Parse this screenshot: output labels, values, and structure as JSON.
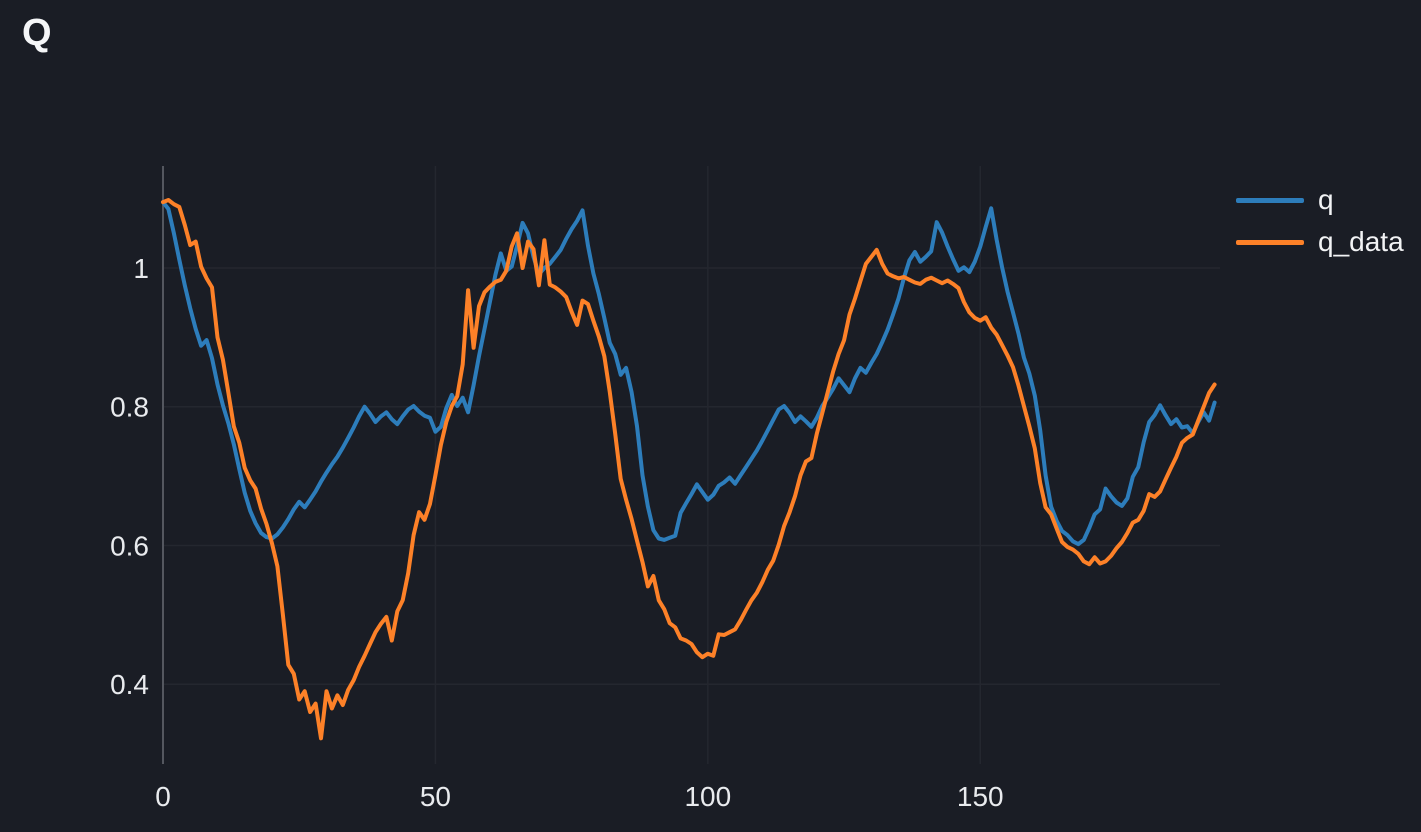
{
  "page": {
    "title": "Q",
    "background_color": "#1a1d25"
  },
  "legend": {
    "position": "right",
    "items": [
      {
        "label": "q",
        "color": "#2d7dbb"
      },
      {
        "label": "q_data",
        "color": "#fd8128"
      }
    ]
  },
  "axes": {
    "x_tick_labels": [
      "0",
      "50",
      "100",
      "150"
    ],
    "y_tick_labels": [
      "1",
      "0.8",
      "0.6",
      "0.4"
    ],
    "tick_color": "#e9ebee",
    "grid_color": "#24272f",
    "spine_color": "#54575f"
  },
  "chart_data": {
    "type": "line",
    "title": "Q",
    "xlabel": "",
    "ylabel": "",
    "grid": true,
    "legend_position": "right-outside",
    "xlim": [
      0,
      194
    ],
    "ylim": [
      0.285,
      1.147
    ],
    "x_ticks": [
      0,
      50,
      100,
      150
    ],
    "y_ticks": [
      1.0,
      0.8,
      0.6,
      0.4
    ],
    "x_start": 0,
    "x_step": 1,
    "n_points": 194,
    "series": [
      {
        "name": "q",
        "color": "#2d7dbb",
        "values": [
          1.095,
          1.085,
          1.05,
          1.012,
          0.975,
          0.942,
          0.912,
          0.888,
          0.896,
          0.87,
          0.832,
          0.802,
          0.776,
          0.746,
          0.71,
          0.676,
          0.65,
          0.632,
          0.618,
          0.612,
          0.61,
          0.616,
          0.626,
          0.638,
          0.652,
          0.663,
          0.655,
          0.666,
          0.678,
          0.692,
          0.705,
          0.717,
          0.728,
          0.741,
          0.755,
          0.77,
          0.786,
          0.8,
          0.79,
          0.778,
          0.786,
          0.792,
          0.782,
          0.775,
          0.786,
          0.796,
          0.801,
          0.793,
          0.787,
          0.784,
          0.764,
          0.771,
          0.798,
          0.817,
          0.801,
          0.813,
          0.792,
          0.831,
          0.873,
          0.912,
          0.951,
          0.99,
          1.021,
          0.996,
          1.002,
          1.032,
          1.065,
          1.05,
          1.016,
          0.991,
          1.0,
          1.006,
          1.016,
          1.026,
          1.042,
          1.056,
          1.068,
          1.083,
          1.032,
          0.992,
          0.962,
          0.928,
          0.892,
          0.876,
          0.846,
          0.856,
          0.821,
          0.772,
          0.701,
          0.656,
          0.622,
          0.61,
          0.608,
          0.611,
          0.614,
          0.647,
          0.661,
          0.674,
          0.688,
          0.677,
          0.666,
          0.673,
          0.686,
          0.691,
          0.698,
          0.689,
          0.701,
          0.713,
          0.725,
          0.737,
          0.751,
          0.766,
          0.781,
          0.796,
          0.801,
          0.791,
          0.778,
          0.786,
          0.779,
          0.771,
          0.784,
          0.801,
          0.813,
          0.826,
          0.841,
          0.831,
          0.821,
          0.841,
          0.856,
          0.849,
          0.863,
          0.876,
          0.893,
          0.911,
          0.933,
          0.956,
          0.986,
          1.011,
          1.023,
          1.009,
          1.016,
          1.024,
          1.066,
          1.051,
          1.031,
          1.013,
          0.996,
          1.001,
          0.994,
          1.009,
          1.031,
          1.059,
          1.086,
          1.041,
          1.001,
          0.966,
          0.936,
          0.906,
          0.871,
          0.848,
          0.816,
          0.766,
          0.701,
          0.656,
          0.636,
          0.621,
          0.615,
          0.606,
          0.602,
          0.608,
          0.625,
          0.645,
          0.652,
          0.682,
          0.671,
          0.662,
          0.657,
          0.668,
          0.699,
          0.713,
          0.749,
          0.778,
          0.788,
          0.802,
          0.788,
          0.775,
          0.782,
          0.77,
          0.772,
          0.762,
          0.778,
          0.792,
          0.78,
          0.806
        ]
      },
      {
        "name": "q_data",
        "color": "#fd8128",
        "values": [
          1.095,
          1.098,
          1.092,
          1.088,
          1.062,
          1.033,
          1.038,
          1.002,
          0.985,
          0.972,
          0.9,
          0.868,
          0.82,
          0.772,
          0.748,
          0.712,
          0.694,
          0.682,
          0.653,
          0.631,
          0.603,
          0.57,
          0.5,
          0.428,
          0.415,
          0.378,
          0.39,
          0.36,
          0.372,
          0.322,
          0.39,
          0.365,
          0.384,
          0.37,
          0.392,
          0.406,
          0.425,
          0.441,
          0.458,
          0.475,
          0.487,
          0.497,
          0.463,
          0.505,
          0.521,
          0.56,
          0.615,
          0.648,
          0.637,
          0.66,
          0.701,
          0.745,
          0.778,
          0.801,
          0.815,
          0.861,
          0.968,
          0.885,
          0.945,
          0.965,
          0.973,
          0.98,
          0.983,
          0.996,
          1.031,
          1.05,
          1.0,
          1.038,
          1.027,
          0.975,
          1.04,
          0.976,
          0.972,
          0.966,
          0.958,
          0.937,
          0.918,
          0.953,
          0.948,
          0.924,
          0.901,
          0.873,
          0.821,
          0.761,
          0.696,
          0.666,
          0.638,
          0.607,
          0.576,
          0.541,
          0.556,
          0.521,
          0.508,
          0.488,
          0.482,
          0.466,
          0.463,
          0.458,
          0.446,
          0.439,
          0.444,
          0.441,
          0.472,
          0.471,
          0.475,
          0.479,
          0.492,
          0.507,
          0.521,
          0.532,
          0.547,
          0.565,
          0.578,
          0.601,
          0.628,
          0.648,
          0.671,
          0.701,
          0.721,
          0.726,
          0.761,
          0.791,
          0.821,
          0.851,
          0.876,
          0.896,
          0.933,
          0.956,
          0.981,
          1.006,
          1.016,
          1.026,
          1.006,
          0.992,
          0.988,
          0.985,
          0.987,
          0.983,
          0.979,
          0.977,
          0.983,
          0.986,
          0.982,
          0.978,
          0.982,
          0.977,
          0.971,
          0.951,
          0.936,
          0.928,
          0.924,
          0.929,
          0.914,
          0.904,
          0.889,
          0.874,
          0.857,
          0.831,
          0.801,
          0.772,
          0.74,
          0.69,
          0.655,
          0.645,
          0.625,
          0.605,
          0.598,
          0.594,
          0.588,
          0.577,
          0.573,
          0.583,
          0.574,
          0.577,
          0.585,
          0.596,
          0.605,
          0.618,
          0.633,
          0.637,
          0.65,
          0.674,
          0.67,
          0.678,
          0.695,
          0.712,
          0.728,
          0.748,
          0.755,
          0.76,
          0.78,
          0.8,
          0.82,
          0.832
        ]
      }
    ]
  }
}
